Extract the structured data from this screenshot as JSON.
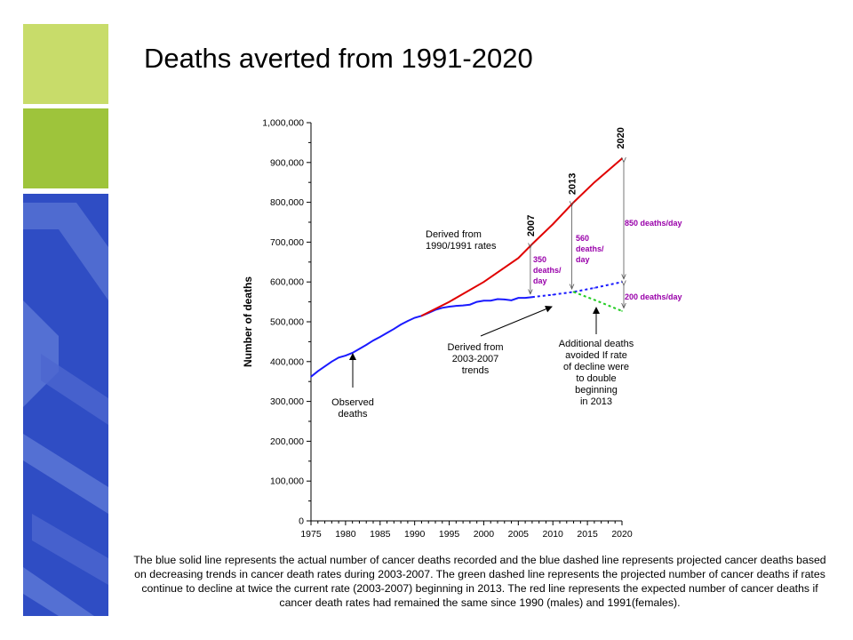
{
  "slide": {
    "title": "Deaths averted from 1991-2020",
    "caption": "The blue solid line represents the actual number of cancer deaths recorded and the blue dashed line represents projected cancer deaths based on decreasing trends in cancer death rates during 2003-2007. The green dashed line represents the projected number of cancer deaths if rates continue to decline at twice the current rate (2003-2007) beginning in 2013. The red line represents the expected number of cancer deaths if cancer death rates had remained the same since 1990 (males) and 1991(females).",
    "colors": {
      "sidebar_light_green": "#c8dc6a",
      "sidebar_green": "#9ec43b",
      "sidebar_blue": "#2f4dc4"
    }
  },
  "chart_data": {
    "type": "line",
    "ylabel": "Number of deaths",
    "xlabel": "",
    "xlim": [
      1975,
      2020
    ],
    "ylim": [
      0,
      1000000
    ],
    "x_ticks": [
      "1975",
      "1980",
      "1985",
      "1990",
      "1995",
      "2000",
      "2005",
      "2010",
      "2015",
      "2020"
    ],
    "y_ticks": [
      "0",
      "100,000",
      "200,000",
      "300,000",
      "400,000",
      "500,000",
      "600,000",
      "700,000",
      "800,000",
      "900,000",
      "1,000,000"
    ],
    "series": [
      {
        "style": "solid",
        "color": "#1a1aff",
        "x": [
          1975,
          1976,
          1977,
          1978,
          1979,
          1980,
          1981,
          1982,
          1983,
          1984,
          1985,
          1986,
          1987,
          1988,
          1989,
          1990,
          1991,
          1992,
          1993,
          1994,
          1995,
          1996,
          1997,
          1998,
          1999,
          2000,
          2001,
          2002,
          2003,
          2004,
          2005,
          2006,
          2007
        ],
        "y": [
          362000,
          376000,
          388000,
          400000,
          410000,
          415000,
          422000,
          432000,
          442000,
          453000,
          462000,
          472000,
          482000,
          493000,
          502000,
          510000,
          515000,
          522000,
          530000,
          535000,
          538000,
          540000,
          541000,
          543000,
          550000,
          553000,
          553000,
          557000,
          556000,
          554000,
          560000,
          560000,
          562000
        ]
      },
      {
        "style": "dashed",
        "color": "#1a1aff",
        "x": [
          2007,
          2010,
          2013,
          2016,
          2020
        ],
        "y": [
          562000,
          568000,
          575000,
          585000,
          600000
        ]
      },
      {
        "style": "dashed",
        "color": "#22cc22",
        "x": [
          2013,
          2016,
          2020
        ],
        "y": [
          575000,
          555000,
          527000
        ]
      },
      {
        "style": "solid",
        "color": "#e00000",
        "x": [
          1991,
          1995,
          2000,
          2005,
          2007,
          2010,
          2013,
          2016,
          2020
        ],
        "y": [
          515000,
          550000,
          600000,
          660000,
          695000,
          745000,
          800000,
          850000,
          910000
        ]
      }
    ],
    "year_markers": [
      {
        "label": "2007",
        "x": 2007
      },
      {
        "label": "2013",
        "x": 2013
      },
      {
        "label": "2020",
        "x": 2020
      }
    ],
    "annotations": [
      {
        "text": [
          "Observed",
          "deaths"
        ]
      },
      {
        "text": [
          "Derived from",
          "1990/1991 rates"
        ]
      },
      {
        "text": [
          "Derived from",
          "2003-2007",
          "trends"
        ]
      },
      {
        "text": [
          "Additional deaths",
          "avoided If rate",
          "of decline were",
          "to double",
          "beginning",
          "in 2013"
        ]
      },
      {
        "text": [
          "350",
          "deaths/",
          "day"
        ],
        "color": "#9900aa"
      },
      {
        "text": [
          "560",
          "deaths/",
          "day"
        ],
        "color": "#9900aa"
      },
      {
        "text": [
          "850 deaths/day"
        ],
        "color": "#9900aa"
      },
      {
        "text": [
          "200 deaths/day"
        ],
        "color": "#9900aa"
      }
    ]
  }
}
